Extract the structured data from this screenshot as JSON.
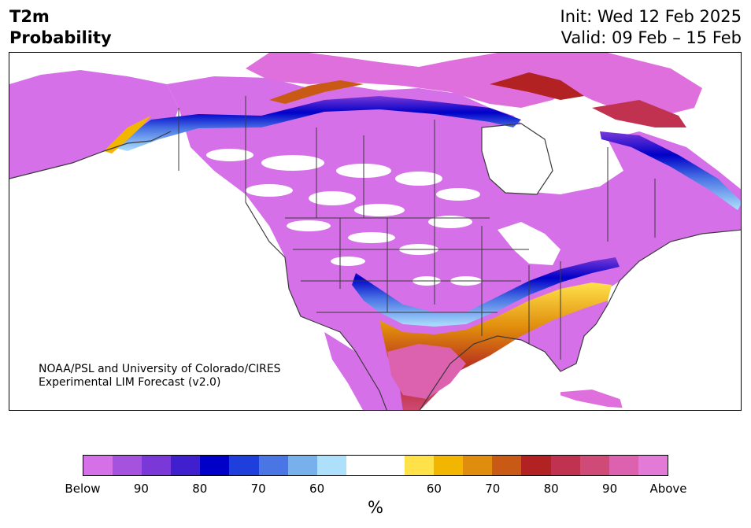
{
  "title": {
    "line1": "T2m",
    "line2": "Probability"
  },
  "header_right": {
    "init": "Init: Wed 12 Feb 2025",
    "valid": "Valid: 09 Feb – 15 Feb"
  },
  "credit": {
    "line1": "NOAA/PSL and University of Colorado/CIRES",
    "line2": "Experimental LIM Forecast (v2.0)"
  },
  "colorbar": {
    "colors": [
      "#d670e8",
      "#a552de",
      "#7a38d8",
      "#3f1fce",
      "#0000c8",
      "#1f3fdc",
      "#4a75e4",
      "#78b0ec",
      "#aee0fc",
      "#ffffff",
      "#ffffff",
      "#ffe14a",
      "#f2b500",
      "#e08c0c",
      "#c85a16",
      "#b22222",
      "#c03250",
      "#d04a78",
      "#dc62b0",
      "#e47ad8"
    ],
    "labels": [
      "Below",
      "90",
      "80",
      "70",
      "60",
      "60",
      "70",
      "80",
      "90",
      "Above"
    ],
    "unit": "%"
  },
  "map_colors": {
    "above": "#df6fdc",
    "below": "#d670e8",
    "land_bg": "#ffffff",
    "ocean_blank": "#ffffff",
    "border": "#3a3a3a"
  }
}
